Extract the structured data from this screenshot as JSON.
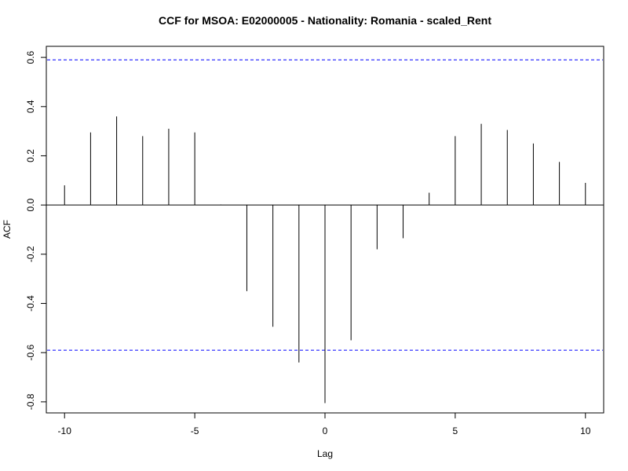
{
  "chart_data": {
    "type": "bar",
    "title": "CCF for MSOA: E02000005 - Nationality: Romania - scaled_Rent",
    "xlabel": "Lag",
    "ylabel": "ACF",
    "xlim": [
      -10.7,
      10.7
    ],
    "ylim": [
      -0.845,
      0.645
    ],
    "xticks": [
      -10,
      -5,
      0,
      5,
      10
    ],
    "xtick_labels": [
      "-10",
      "-5",
      "0",
      "5",
      "10"
    ],
    "yticks": [
      -0.8,
      -0.6,
      -0.4,
      -0.2,
      0.0,
      0.2,
      0.4,
      0.6
    ],
    "ytick_labels": [
      "-0.8",
      "-0.6",
      "-0.4",
      "-0.2",
      "0.0",
      "0.2",
      "0.4",
      "0.6"
    ],
    "x": [
      -10,
      -9,
      -8,
      -7,
      -6,
      -5,
      -4,
      -3,
      -2,
      -1,
      0,
      1,
      2,
      3,
      4,
      5,
      6,
      7,
      8,
      9,
      10
    ],
    "values": [
      0.08,
      0.295,
      0.36,
      0.28,
      0.31,
      0.295,
      0.002,
      -0.35,
      -0.495,
      -0.64,
      -0.805,
      -0.55,
      -0.18,
      -0.135,
      0.05,
      0.28,
      0.33,
      0.305,
      0.25,
      0.175,
      0.09
    ],
    "confidence_bounds": [
      0.59,
      -0.59
    ],
    "zero_line": 0,
    "colors": {
      "bars": "#000000",
      "bounds": "#0000ff",
      "frame": "#000000"
    },
    "grid": false
  }
}
